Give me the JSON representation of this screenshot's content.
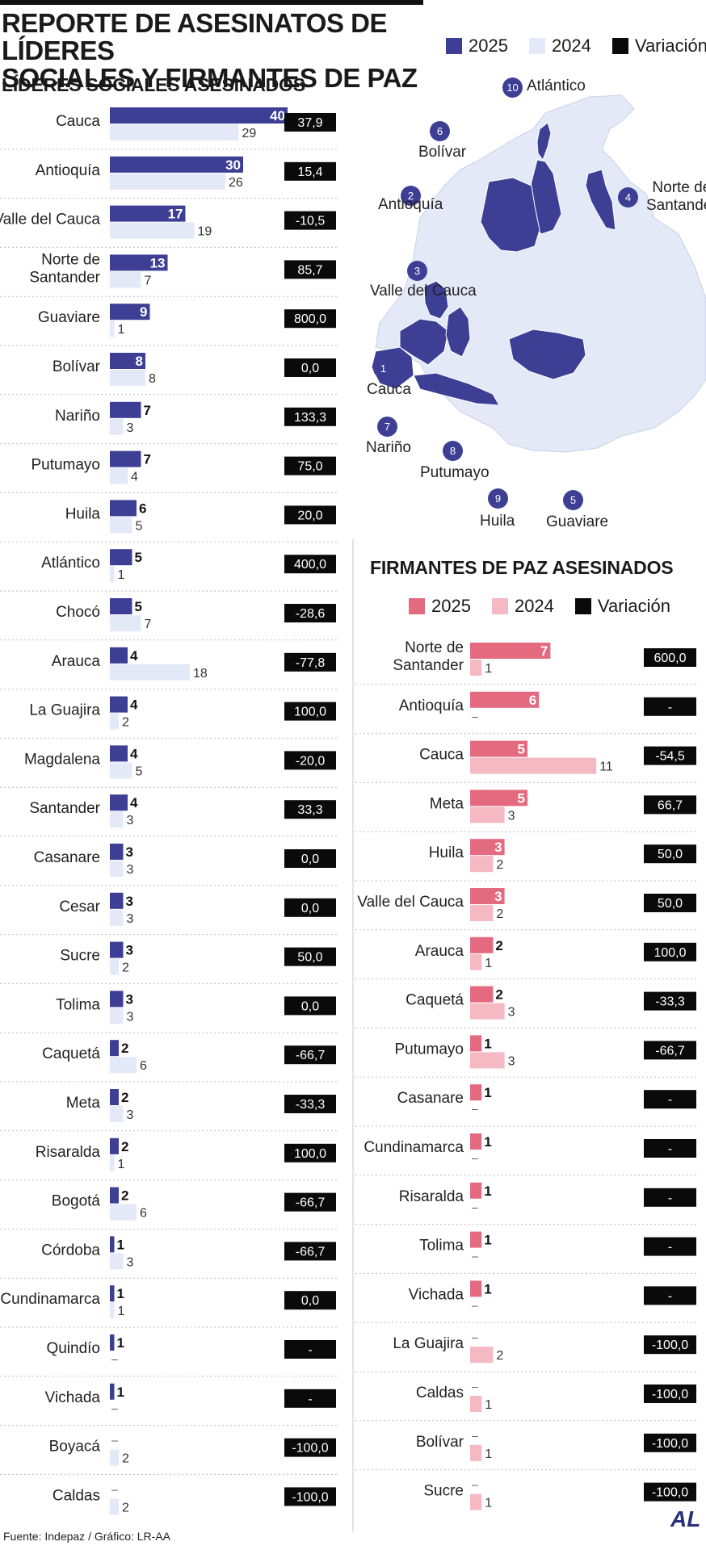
{
  "title_line1": "REPORTE DE ASESINATOS DE LÍDERES",
  "title_line2": "SOCIALES Y FIRMANTES DE PAZ",
  "legend_left": {
    "y2025": "2025",
    "y2024": "2024",
    "var": "Variación"
  },
  "legend_right": {
    "y2025": "2025",
    "y2024": "2024",
    "var": "Variación"
  },
  "colors": {
    "blue2025": "#3d3f95",
    "blue2024": "#e3e9f7",
    "pink2025": "#e46a80",
    "pink2024": "#f4b9c3",
    "variation": "#0a0a0a"
  },
  "footer": "Fuente: Indepaz / Gráfico: LR-AA",
  "logo": "AL",
  "map": {
    "labels": [
      {
        "num": "10",
        "name": "Atlántico"
      },
      {
        "num": "6",
        "name": "Bolívar"
      },
      {
        "num": "2",
        "name": "Antioquía"
      },
      {
        "num": "4",
        "name": "Norte de Santander"
      },
      {
        "num": "3",
        "name": "Valle del Cauca"
      },
      {
        "num": "1",
        "name": "Cauca"
      },
      {
        "num": "7",
        "name": "Nariño"
      },
      {
        "num": "8",
        "name": "Putumayo"
      },
      {
        "num": "9",
        "name": "Huila"
      },
      {
        "num": "5",
        "name": "Guaviare"
      }
    ]
  },
  "chart_data": [
    {
      "type": "bar",
      "title": "LÍDERES SOCIALES ASESINADOS",
      "categories": [
        "Cauca",
        "Antioquía",
        "Valle del Cauca",
        "Norte de Santander",
        "Guaviare",
        "Bolívar",
        "Nariño",
        "Putumayo",
        "Huila",
        "Atlántico",
        "Chocó",
        "Arauca",
        "La Guajira",
        "Magdalena",
        "Santander",
        "Casanare",
        "Cesar",
        "Sucre",
        "Tolima",
        "Caquetá",
        "Meta",
        "Risaralda",
        "Bogotá",
        "Córdoba",
        "Cundinamarca",
        "Quindío",
        "Vichada",
        "Boyacá",
        "Caldas"
      ],
      "series": [
        {
          "name": "2025",
          "values": [
            40,
            30,
            17,
            13,
            9,
            8,
            7,
            7,
            6,
            5,
            5,
            4,
            4,
            4,
            4,
            3,
            3,
            3,
            3,
            2,
            2,
            2,
            2,
            1,
            1,
            1,
            1,
            null,
            null
          ]
        },
        {
          "name": "2024",
          "values": [
            29,
            26,
            19,
            7,
            1,
            8,
            3,
            4,
            5,
            1,
            7,
            18,
            2,
            5,
            3,
            3,
            3,
            2,
            3,
            6,
            3,
            1,
            6,
            3,
            1,
            null,
            null,
            2,
            2
          ]
        }
      ],
      "variation": [
        "37,9",
        "15,4",
        "-10,5",
        "85,7",
        "800,0",
        "0,0",
        "133,3",
        "75,0",
        "20,0",
        "400,0",
        "-28,6",
        "-77,8",
        "100,0",
        "-20,0",
        "33,3",
        "0,0",
        "0,0",
        "50,0",
        "0,0",
        "-66,7",
        "-33,3",
        "100,0",
        "-66,7",
        "-66,7",
        "0,0",
        "-",
        "-",
        "-100,0",
        "-100,0"
      ],
      "empty_mark": "–"
    },
    {
      "type": "bar",
      "title": "FIRMANTES DE PAZ ASESINADOS",
      "categories": [
        "Norte de Santander",
        "Antioquía",
        "Cauca",
        "Meta",
        "Huila",
        "Valle del Cauca",
        "Arauca",
        "Caquetá",
        "Putumayo",
        "Casanare",
        "Cundinamarca",
        "Risaralda",
        "Tolima",
        "Vichada",
        "La Guajira",
        "Caldas",
        "Bolívar",
        "Sucre"
      ],
      "series": [
        {
          "name": "2025",
          "values": [
            7,
            6,
            5,
            5,
            3,
            3,
            2,
            2,
            1,
            1,
            1,
            1,
            1,
            1,
            null,
            null,
            null,
            null
          ]
        },
        {
          "name": "2024",
          "values": [
            1,
            null,
            11,
            3,
            2,
            2,
            1,
            3,
            3,
            null,
            null,
            null,
            null,
            null,
            2,
            1,
            1,
            1
          ]
        }
      ],
      "variation": [
        "600,0",
        "-",
        "-54,5",
        "66,7",
        "50,0",
        "50,0",
        "100,0",
        "-33,3",
        "-66,7",
        "-",
        "-",
        "-",
        "-",
        "-",
        "-100,0",
        "-100,0",
        "-100,0",
        "-100,0"
      ],
      "empty_mark": "–"
    }
  ]
}
